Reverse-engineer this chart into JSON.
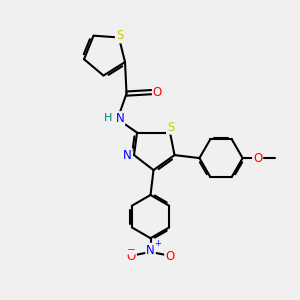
{
  "background_color": "#f0f0f0",
  "atom_colors": {
    "C": "#000000",
    "N": "#0000FF",
    "O": "#FF0000",
    "S": "#CCCC00",
    "H": "#008080"
  },
  "bond_width": 1.5,
  "font_size_atoms": 8.5
}
